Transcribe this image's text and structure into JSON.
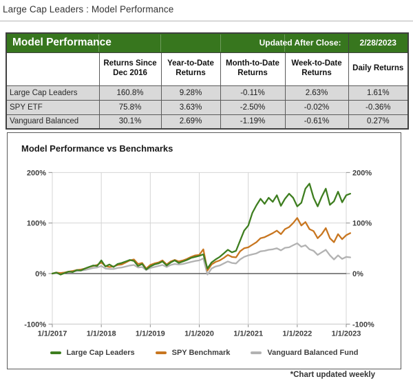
{
  "page": {
    "title": "Large Cap Leaders : Model Performance",
    "footnote": "*Chart updated weekly"
  },
  "colors": {
    "header_green": "#37761E",
    "row_gray": "#D9D9D9",
    "gridline": "#d4d4d4",
    "zero_line": "#3f3f3f",
    "axis_tick": "#8a8a8a",
    "axis_line": "#b5b5b5"
  },
  "table": {
    "title": "Model Performance",
    "updated_label": "Updated After Close:",
    "updated_date": "2/28/2023",
    "columns": [
      "",
      "Returns Since Dec 2016",
      "Year-to-Date Returns",
      "Month-to-Date Returns",
      "Week-to-Date Returns",
      "Daily Returns"
    ],
    "rows": [
      {
        "label": "Large Cap Leaders",
        "values": [
          "160.8%",
          "9.28%",
          "-0.11%",
          "2.63%",
          "1.61%"
        ]
      },
      {
        "label": "SPY ETF",
        "values": [
          "75.8%",
          "3.63%",
          "-2.50%",
          "-0.02%",
          "-0.36%"
        ]
      },
      {
        "label": "Vanguard Balanced",
        "values": [
          "30.1%",
          "2.69%",
          "-1.19%",
          "-0.61%",
          "0.27%"
        ]
      }
    ]
  },
  "chart_data": {
    "type": "line",
    "title": "Model Performance vs Benchmarks",
    "xlabel": "",
    "ylabel": "",
    "ylim": [
      -100,
      200
    ],
    "grid": true,
    "legend_position": "bottom",
    "x_unit": "months since 2017-01",
    "x_tick_labels": [
      "1/1/2017",
      "1/1/2018",
      "1/1/2019",
      "1/1/2020",
      "1/1/2021",
      "1/1/2022",
      "1/1/2023"
    ],
    "y_axis": [
      {
        "v": 200,
        "label": "200%"
      },
      {
        "v": 100,
        "label": "100%"
      },
      {
        "v": 0,
        "label": "0%"
      },
      {
        "v": -100,
        "label": "-100%"
      }
    ],
    "series": [
      {
        "name": "Large Cap Leaders",
        "color": "#3E7E20",
        "values": [
          0,
          2,
          -2,
          1,
          4,
          3,
          7,
          6,
          10,
          13,
          16,
          15,
          26,
          14,
          18,
          13,
          19,
          21,
          24,
          27,
          25,
          15,
          19,
          8,
          14,
          18,
          20,
          24,
          16,
          22,
          26,
          21,
          24,
          27,
          31,
          33,
          35,
          38,
          10,
          22,
          28,
          33,
          40,
          47,
          42,
          45,
          65,
          85,
          95,
          120,
          135,
          148,
          138,
          150,
          142,
          155,
          134,
          148,
          158,
          150,
          133,
          140,
          168,
          178,
          150,
          133,
          152,
          168,
          136,
          143,
          162,
          141,
          155,
          158
        ]
      },
      {
        "name": "SPY Benchmark",
        "color": "#C87620",
        "values": [
          0,
          2,
          1,
          2,
          4,
          5,
          7,
          8,
          10,
          13,
          15,
          17,
          22,
          15,
          13,
          14,
          17,
          18,
          22,
          26,
          28,
          19,
          21,
          10,
          17,
          20,
          22,
          26,
          18,
          24,
          27,
          24,
          26,
          29,
          33,
          36,
          37,
          48,
          6,
          18,
          23,
          26,
          31,
          37,
          33,
          32,
          44,
          50,
          52,
          57,
          62,
          70,
          72,
          76,
          80,
          85,
          78,
          88,
          92,
          100,
          110,
          95,
          102,
          88,
          84,
          70,
          78,
          90,
          70,
          62,
          78,
          68,
          76,
          80
        ]
      },
      {
        "name": "Vanguard Balanced Fund",
        "color": "#B2B2B2",
        "values": [
          0,
          1,
          1,
          2,
          3,
          4,
          5,
          6,
          7,
          9,
          11,
          12,
          15,
          10,
          9,
          9,
          11,
          12,
          14,
          16,
          17,
          12,
          13,
          7,
          11,
          13,
          15,
          17,
          13,
          17,
          19,
          18,
          19,
          21,
          23,
          25,
          26,
          30,
          -2,
          10,
          14,
          16,
          20,
          24,
          21,
          20,
          28,
          33,
          36,
          38,
          40,
          44,
          45,
          47,
          48,
          50,
          46,
          51,
          52,
          56,
          60,
          53,
          56,
          48,
          45,
          37,
          42,
          47,
          36,
          28,
          36,
          29,
          33,
          32
        ]
      }
    ]
  }
}
